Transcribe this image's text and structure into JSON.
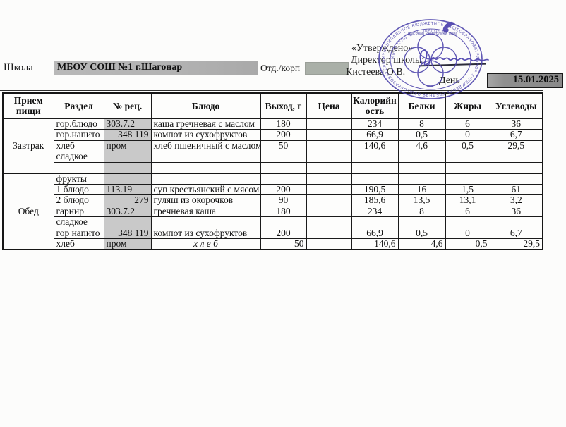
{
  "page": {
    "school_label": "Школа",
    "school_name": "МБОУ СОШ №1 г.Шагонар",
    "dept_label": "Отд./корп",
    "dept_value": "",
    "approved_text": "«Утверждено»",
    "director_label": "Директор школы:",
    "director_name": "Кистеева О.В.",
    "day_label": "День",
    "date_value": "15.01.2025"
  },
  "stamp": {
    "color": "#4d44ac",
    "ring_text": "МУНИЦИПАЛЬНОЕ БЮДЖЕТНОЕ ОБЩЕОБРАЗОВАТЕЛЬНОЕ УЧРЕЖДЕНИЕ СРЕДНЯЯ ОБЩЕОБРАЗОВАТЕЛЬНАЯ ШКОЛА №1 Г. ШАГОНАР",
    "inner_text_top": "г. Шагонар Республики Тыва",
    "inner_text_bottom": "МБОУ СОШ №1 Г. ШАГОНАР"
  },
  "table": {
    "headers": [
      "Прием пищи",
      "Раздел",
      "№ рец.",
      "Блюдо",
      "Выход, г",
      "Цена",
      "Калорийн ость",
      "Белки",
      "Жиры",
      "Углеводы"
    ],
    "highlight_color": "#c9c9c9",
    "sections": [
      {
        "meal": "Завтрак",
        "rows": [
          {
            "razdel": "гор.блюдо",
            "rec": "303.7.2",
            "rec_align": "left",
            "dish": "каша гречневая с маслом",
            "out": "180",
            "price": "",
            "kcal": "234",
            "prot": "8",
            "fat": "6",
            "carb": "36"
          },
          {
            "razdel": "гор.напито",
            "rec": "348 119",
            "rec_align": "right",
            "dish": "компот из сухофруктов",
            "out": "200",
            "price": "",
            "kcal": "66,9",
            "prot": "0,5",
            "fat": "0",
            "carb": "6,7"
          },
          {
            "razdel": "хлеб",
            "rec": "пром",
            "rec_align": "left",
            "dish": "хлеб пшеничный с маслом",
            "out": "50",
            "price": "",
            "kcal": "140,6",
            "prot": "4,6",
            "fat": "0,5",
            "carb": "29,5"
          },
          {
            "razdel": "сладкое",
            "rec": "",
            "dish": "",
            "out": "",
            "price": "",
            "kcal": "",
            "prot": "",
            "fat": "",
            "carb": ""
          },
          {
            "razdel": "",
            "rec": "",
            "dish": "",
            "out": "",
            "price": "",
            "kcal": "",
            "prot": "",
            "fat": "",
            "carb": ""
          }
        ]
      },
      {
        "meal": "Обед",
        "rows": [
          {
            "razdel": "фрукты",
            "rec": "",
            "dish": "",
            "out": "",
            "price": "",
            "kcal": "",
            "prot": "",
            "fat": "",
            "carb": ""
          },
          {
            "razdel": "1 блюдо",
            "rec": "113.19",
            "rec_align": "left",
            "dish": "суп крестьянский с мясом",
            "out": "200",
            "price": "",
            "kcal": "190,5",
            "prot": "16",
            "fat": "1,5",
            "carb": "61"
          },
          {
            "razdel": "2 блюдо",
            "rec": "279",
            "rec_align": "right",
            "dish": "гуляш из окорочков",
            "out": "90",
            "price": "",
            "kcal": "185,6",
            "prot": "13,5",
            "fat": "13,1",
            "carb": "3,2"
          },
          {
            "razdel": "гарнир",
            "rec": "303.7.2",
            "rec_align": "left",
            "dish": "гречневая каша",
            "out": "180",
            "price": "",
            "kcal": "234",
            "prot": "8",
            "fat": "6",
            "carb": "36"
          },
          {
            "razdel": "сладкое",
            "rec": "",
            "dish": "",
            "out": "",
            "price": "",
            "kcal": "",
            "prot": "",
            "fat": "",
            "carb": ""
          },
          {
            "razdel": "гор напито",
            "rec": "348 119",
            "rec_align": "right",
            "dish": "компот из сухофруктов",
            "out": "200",
            "price": "",
            "kcal": "66,9",
            "prot": "0,5",
            "fat": "0",
            "carb": "6,7"
          },
          {
            "razdel": "хлеб",
            "rec": "пром",
            "rec_align": "left",
            "dish": "х л е б",
            "dish_style": "italic-center",
            "out": "50",
            "price": "",
            "kcal": "140,6",
            "prot": "4,6",
            "fat": "0,5",
            "carb": "29,5",
            "num_align": "right"
          }
        ]
      }
    ]
  }
}
